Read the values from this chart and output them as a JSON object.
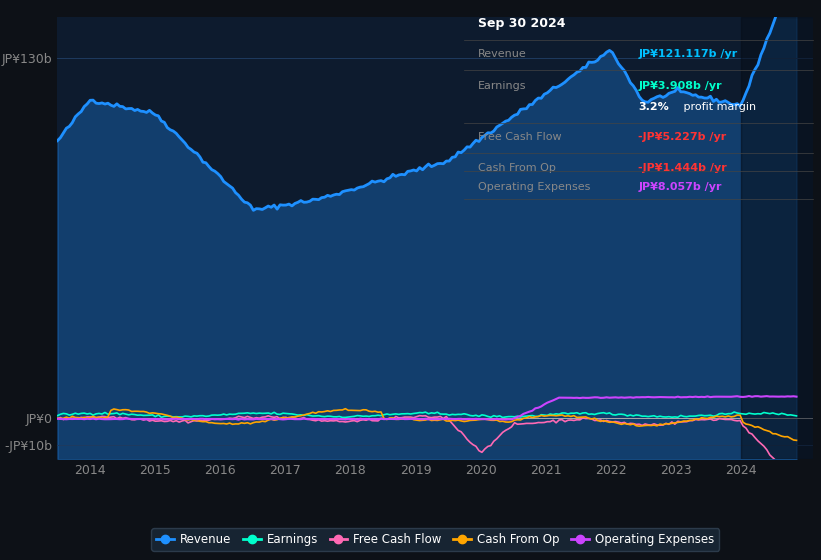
{
  "background_color": "#0d1117",
  "plot_bg_color": "#0d1b2e",
  "grid_color": "#1e3a5f",
  "tick_color": "#888888",
  "ylim": [
    -15,
    145
  ],
  "ytick_labels": [
    "-JP¥10b",
    "JP¥0",
    "JP¥130b"
  ],
  "ytick_vals": [
    -10,
    0,
    130
  ],
  "xticks": [
    2014,
    2015,
    2016,
    2017,
    2018,
    2019,
    2020,
    2021,
    2022,
    2023,
    2024
  ],
  "info_box": {
    "date": "Sep 30 2024",
    "revenue_label": "Revenue",
    "revenue_value": "JP¥121.117b",
    "revenue_color": "#00bfff",
    "earnings_label": "Earnings",
    "earnings_value": "JP¥3.908b",
    "earnings_color": "#00ffcc",
    "profit_pct": "3.2%",
    "profit_text": " profit margin",
    "free_cash_flow_label": "Free Cash Flow",
    "free_cash_flow_value": "-JP¥5.227b",
    "free_cash_flow_color": "#ff3333",
    "cash_from_op_label": "Cash From Op",
    "cash_from_op_value": "-JP¥1.444b",
    "cash_from_op_color": "#ff3333",
    "op_expenses_label": "Operating Expenses",
    "op_expenses_value": "JP¥8.057b",
    "op_expenses_color": "#cc44ff"
  },
  "legend": [
    {
      "label": "Revenue",
      "color": "#1e90ff"
    },
    {
      "label": "Earnings",
      "color": "#00ffcc"
    },
    {
      "label": "Free Cash Flow",
      "color": "#ff69b4"
    },
    {
      "label": "Cash From Op",
      "color": "#ffa500"
    },
    {
      "label": "Operating Expenses",
      "color": "#cc44ff"
    }
  ],
  "revenue_color": "#1e90ff",
  "earnings_color": "#00ffcc",
  "fcf_color": "#ff69b4",
  "cashfromop_color": "#ffa500",
  "opex_color": "#cc44ff"
}
